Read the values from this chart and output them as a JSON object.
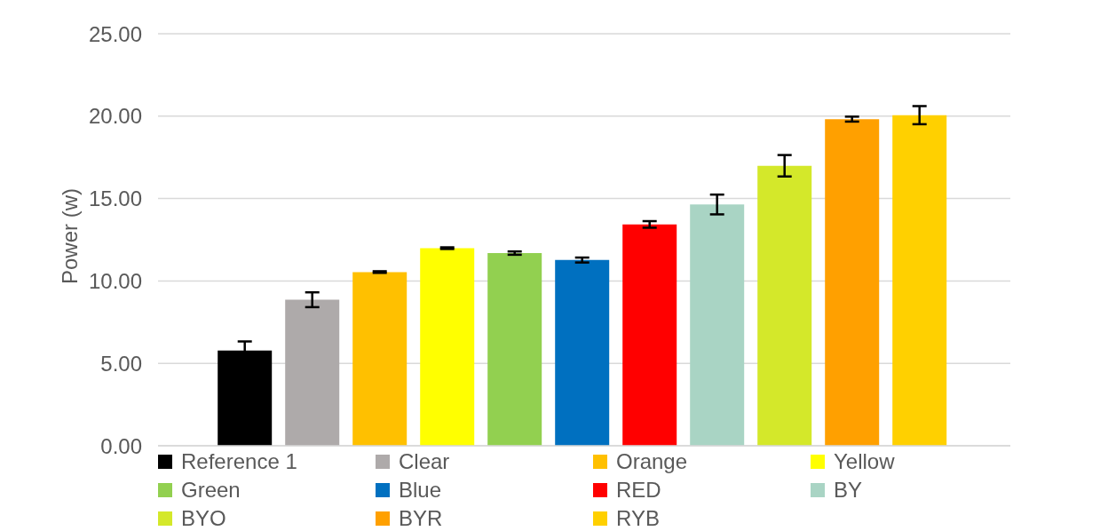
{
  "chart_data": {
    "type": "bar",
    "ylabel": "Power (w)",
    "categories": [
      null
    ],
    "series": [
      {
        "name": "Reference 1",
        "color": "#000000",
        "values": [
          5.78
        ],
        "errors": [
          0.55
        ]
      },
      {
        "name": "Clear",
        "color": "#aeaaaa",
        "values": [
          8.86
        ],
        "errors": [
          0.45
        ]
      },
      {
        "name": "Orange",
        "color": "#ffc000",
        "values": [
          10.54
        ],
        "errors": [
          0.05
        ]
      },
      {
        "name": "Yellow",
        "color": "#ffff00",
        "values": [
          11.99
        ],
        "errors": [
          0.05
        ]
      },
      {
        "name": "Green",
        "color": "#92d050",
        "values": [
          11.69
        ],
        "errors": [
          0.1
        ]
      },
      {
        "name": "Blue",
        "color": "#0070c0",
        "values": [
          11.27
        ],
        "errors": [
          0.15
        ]
      },
      {
        "name": "RED",
        "color": "#ff0000",
        "values": [
          13.43
        ],
        "errors": [
          0.2
        ]
      },
      {
        "name": "BY",
        "color": "#a9d4c4",
        "values": [
          14.64
        ],
        "errors": [
          0.6
        ]
      },
      {
        "name": "BYO",
        "color": "#d4e82a",
        "values": [
          16.99
        ],
        "errors": [
          0.65
        ]
      },
      {
        "name": "BYR",
        "color": "#ffa000",
        "values": [
          19.82
        ],
        "errors": [
          0.15
        ]
      },
      {
        "name": "RYB",
        "color": "#ffd000",
        "values": [
          20.06
        ],
        "errors": [
          0.55
        ]
      }
    ],
    "ylim": [
      0,
      25
    ],
    "yticks": [
      {
        "value": 0,
        "label": "0.00"
      },
      {
        "value": 5,
        "label": "5.00"
      },
      {
        "value": 10,
        "label": "10.00"
      },
      {
        "value": 15,
        "label": "15.00"
      },
      {
        "value": 20,
        "label": "20.00"
      },
      {
        "value": 25,
        "label": "25.00"
      }
    ],
    "grid": "y",
    "legend": "bottom"
  }
}
